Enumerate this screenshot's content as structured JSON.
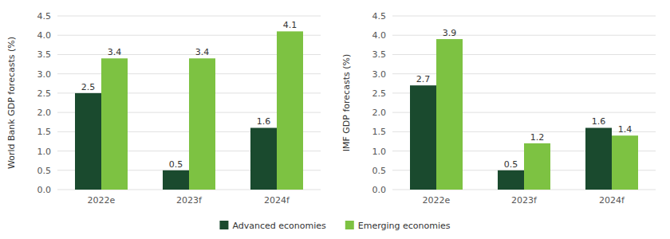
{
  "chart_data": [
    {
      "type": "bar",
      "ylabel": "World Bank GDP forecasts (%)",
      "categories": [
        "2022e",
        "2023f",
        "2024f"
      ],
      "series": [
        {
          "name": "Advanced economies",
          "color": "#1a4a2e",
          "values": [
            2.5,
            0.5,
            1.6
          ]
        },
        {
          "name": "Emerging economies",
          "color": "#7dc242",
          "values": [
            3.4,
            3.4,
            4.1
          ]
        }
      ],
      "ylim": [
        0,
        4.5
      ],
      "yticks": [
        {
          "value": 0,
          "label": "0.0"
        },
        0.5,
        {
          "value": 1,
          "label": "1.0"
        },
        1.5,
        {
          "value": 2,
          "label": "2.0"
        },
        2.5,
        {
          "value": 3,
          "label": "3.0"
        },
        3.5,
        {
          "value": 4,
          "label": "4.0"
        },
        4.5
      ],
      "grid": true,
      "data_labels": true,
      "legend": "bottom"
    },
    {
      "type": "bar",
      "ylabel": "IMF GDP forecasts (%)",
      "categories": [
        "2022e",
        "2023f",
        "2024f"
      ],
      "series": [
        {
          "color": "#1a4a2e",
          "values": [
            2.7,
            0.5,
            1.6
          ]
        },
        {
          "color": "#7dc242",
          "values": [
            3.9,
            1.2,
            1.4
          ]
        }
      ],
      "ylim": [
        0,
        4.5
      ],
      "yticks": [
        {
          "value": 0,
          "label": "0.0"
        },
        0.5,
        {
          "value": 1,
          "label": "1.0"
        },
        1.5,
        {
          "value": 2,
          "label": "2.0"
        },
        2.5,
        {
          "value": 3,
          "label": "3.0"
        },
        3.5,
        {
          "value": 4,
          "label": "4.0"
        },
        4.5
      ],
      "grid": true,
      "data_labels": true
    }
  ]
}
